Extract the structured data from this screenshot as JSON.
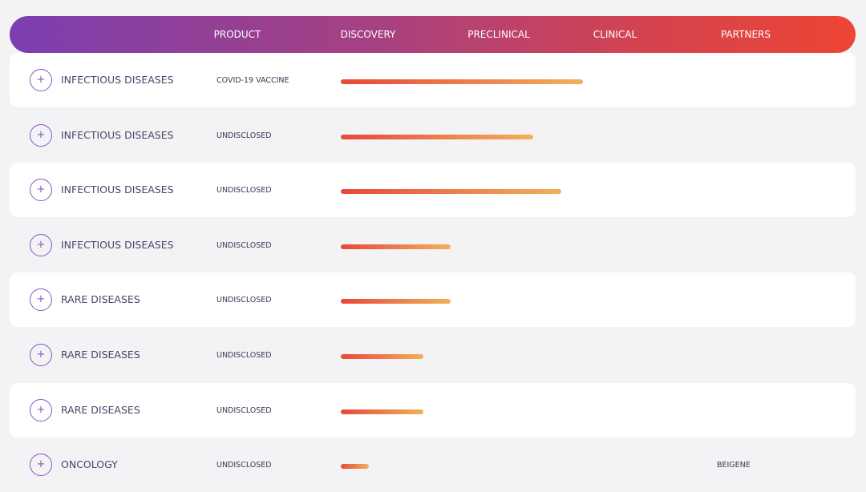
{
  "header": {
    "columns": [
      "PRODUCT",
      "DISCOVERY",
      "PRECLINICAL",
      "CLINICAL",
      "PARTNERS"
    ]
  },
  "rows": [
    {
      "area": "INFECTIOUS DISEASES",
      "product": "COVID-19 VACCINE",
      "progress": 2.0
    },
    {
      "area": "INFECTIOUS DISEASES",
      "product": "UNDISCLOSED",
      "progress": 1.59
    },
    {
      "area": "INFECTIOUS DISEASES",
      "product": "UNDISCLOSED",
      "progress": 1.82
    },
    {
      "area": "INFECTIOUS DISEASES",
      "product": "UNDISCLOSED",
      "progress": 0.91
    },
    {
      "area": "RARE DISEASES",
      "product": "UNDISCLOSED",
      "progress": 0.91
    },
    {
      "area": "RARE DISEASES",
      "product": "UNDISCLOSED",
      "progress": 0.68
    },
    {
      "area": "RARE DISEASES",
      "product": "UNDISCLOSED",
      "progress": 0.68
    },
    {
      "area": "ONCOLOGY",
      "product": "UNDISCLOSED",
      "progress": 0.23,
      "partner": "BEIGENE"
    }
  ]
}
